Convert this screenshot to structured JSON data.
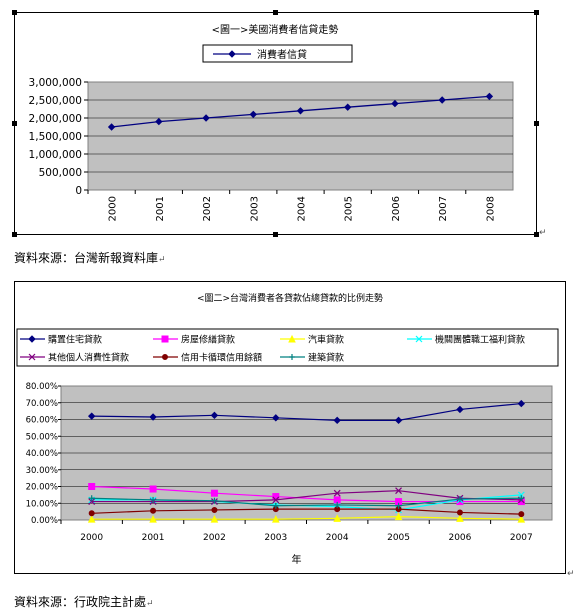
{
  "chart1": {
    "title": "<圖一>美國消費者信貸走勢",
    "legend_label": "消費者信貸",
    "line_color": "#000080",
    "plot_bg": "#c0c0c0"
  },
  "source1": "資料來源：台灣新報資料庫",
  "chart2": {
    "title": "<圖二>台灣消費者各貸款佔總貸款的比例走勢",
    "xlabel": "年",
    "plot_bg": "#c0c0c0"
  },
  "source2": "資料來源：行政院主計處",
  "chart_data": [
    {
      "type": "line",
      "title": "<圖一>美國消費者信貸走勢",
      "categories": [
        "2000",
        "2001",
        "2002",
        "2003",
        "2004",
        "2005",
        "2006",
        "2007",
        "2008"
      ],
      "series": [
        {
          "name": "消費者信貸",
          "color": "#000080",
          "marker": "diamond",
          "values": [
            1750000,
            1900000,
            2000000,
            2100000,
            2200000,
            2300000,
            2400000,
            2500000,
            2600000
          ]
        }
      ],
      "ylim": [
        0,
        3000000
      ],
      "yticks": [
        "3,000,000",
        "2,500,000",
        "2,000,000",
        "1,500,000",
        "1,000,000",
        "500,000",
        "0"
      ],
      "grid": true,
      "legend": "top-center"
    },
    {
      "type": "line",
      "title": "<圖二>台灣消費者各貸款佔總貸款的比例走勢",
      "xlabel": "年",
      "categories": [
        "2000",
        "2001",
        "2002",
        "2003",
        "2004",
        "2005",
        "2006",
        "2007"
      ],
      "ylim": [
        0,
        80
      ],
      "yticks": [
        "80.00%",
        "70.00%",
        "60.00%",
        "50.00%",
        "40.00%",
        "30.00%",
        "20.00%",
        "10.00%",
        "0.00%"
      ],
      "grid": true,
      "legend": "top",
      "series": [
        {
          "name": "購置住宅貸款",
          "color": "#000080",
          "marker": "diamond",
          "values": [
            62,
            61.5,
            62.5,
            61,
            59.5,
            59.5,
            66,
            69.5
          ]
        },
        {
          "name": "房屋修繕貸款",
          "color": "#ff00ff",
          "marker": "square",
          "values": [
            20,
            18.5,
            16,
            14,
            12,
            11,
            11,
            11
          ]
        },
        {
          "name": "汽車貸款",
          "color": "#ffff00",
          "marker": "triangle",
          "values": [
            0.5,
            0.5,
            0.5,
            0.5,
            1,
            2,
            1,
            0.5
          ]
        },
        {
          "name": "機關團體職工福利貸款",
          "color": "#00ffff",
          "marker": "x",
          "values": [
            12,
            12,
            11,
            9,
            8,
            6,
            12,
            15
          ]
        },
        {
          "name": "其他個人消費性貸款",
          "color": "#800080",
          "marker": "x",
          "values": [
            11,
            11,
            11,
            12,
            16,
            17.5,
            13,
            12
          ]
        },
        {
          "name": "信用卡循環信用餘額",
          "color": "#800000",
          "marker": "circle",
          "values": [
            4,
            5.5,
            6,
            6.5,
            6.5,
            6.5,
            4.5,
            3.5
          ]
        },
        {
          "name": "建築貸款",
          "color": "#008080",
          "marker": "plus",
          "values": [
            13,
            12,
            11.5,
            8.5,
            9,
            8.5,
            12.5,
            13
          ]
        }
      ]
    }
  ]
}
